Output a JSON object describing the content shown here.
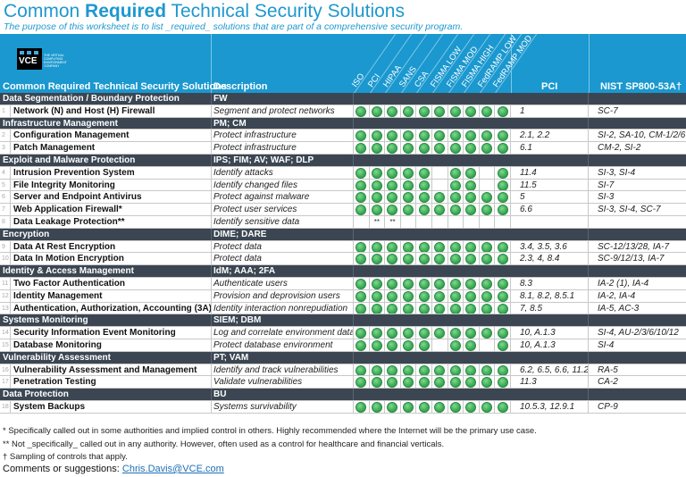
{
  "title": {
    "pre": "Common ",
    "bold": "Required",
    "post": " Technical Security Solutions"
  },
  "subtitle": "The purpose of this worksheet is to list _required_ solutions that are part of a comprehensive security program.",
  "logo": {
    "text": "VCE",
    "tagline": "THE VIRTUAL COMPUTING ENVIRONMENT COMPANY"
  },
  "header": {
    "solutions": "Common Required Technical Security Solutions",
    "description": "Description",
    "authorities": [
      "ISO",
      "PCI",
      "HIPAA",
      "SANS",
      "CSA",
      "FISMA LOW",
      "FISMA MOD",
      "FISMA HIGH",
      "FedRAMP LOW",
      "FedRAMP MOD"
    ],
    "pci": "PCI",
    "nist": "NIST SP800-53A†"
  },
  "colors": {
    "header": "#1a98cf",
    "section": "#3b4652",
    "dot": "#3aab55",
    "title": "#1e98cf"
  },
  "sections": [
    {
      "name": "Data Segmentation / Boundary Protection",
      "abbr": "FW",
      "items": [
        {
          "num": "1",
          "name": "Network (N) and Host (H) Firewall",
          "desc": "Segment and protect networks",
          "marks": [
            1,
            1,
            1,
            1,
            1,
            1,
            1,
            1,
            1,
            1
          ],
          "pci": "1",
          "nist": "SC-7"
        }
      ]
    },
    {
      "name": "Infrastructure Management",
      "abbr": "PM; CM",
      "items": [
        {
          "num": "2",
          "name": "Configuration Management",
          "desc": "Protect infrastructure",
          "marks": [
            1,
            1,
            1,
            1,
            1,
            1,
            1,
            1,
            1,
            1
          ],
          "pci": "2.1, 2.2",
          "nist": "SI-2, SA-10, CM-1/2/6"
        },
        {
          "num": "3",
          "name": "Patch Management",
          "desc": "Protect infrastructure",
          "marks": [
            1,
            1,
            1,
            1,
            1,
            1,
            1,
            1,
            1,
            1
          ],
          "pci": "6.1",
          "nist": "CM-2, SI-2"
        }
      ]
    },
    {
      "name": "Exploit and Malware Protection",
      "abbr": "IPS; FIM; AV; WAF; DLP",
      "items": [
        {
          "num": "4",
          "name": "Intrusion Prevention System",
          "desc": "Identify attacks",
          "marks": [
            1,
            1,
            1,
            1,
            1,
            0,
            1,
            1,
            0,
            1
          ],
          "pci": "11.4",
          "nist": "SI-3, SI-4"
        },
        {
          "num": "5",
          "name": "File Integrity Monitoring",
          "desc": "Identify changed files",
          "marks": [
            1,
            1,
            1,
            1,
            1,
            0,
            1,
            1,
            0,
            1
          ],
          "pci": "11.5",
          "nist": "SI-7"
        },
        {
          "num": "6",
          "name": "Server and Endpoint Antivirus",
          "desc": "Protect against malware",
          "marks": [
            1,
            1,
            1,
            1,
            1,
            1,
            1,
            1,
            1,
            1
          ],
          "pci": "5",
          "nist": "SI-3"
        },
        {
          "num": "7",
          "name": "Web Application Firewall*",
          "desc": "Protect user services",
          "marks": [
            1,
            1,
            1,
            1,
            1,
            1,
            1,
            1,
            1,
            1
          ],
          "pci": "6.6",
          "nist": "SI-3, SI-4, SC-7"
        },
        {
          "num": "8",
          "name": "Data Leakage Protection**",
          "desc": "Identify sensitive data",
          "marks": [
            0,
            "**",
            "**",
            0,
            0,
            0,
            0,
            0,
            0,
            0
          ],
          "pci": "",
          "nist": ""
        }
      ]
    },
    {
      "name": "Encryption",
      "abbr": "DIME; DARE",
      "items": [
        {
          "num": "9",
          "name": "Data At Rest Encryption",
          "desc": "Protect data",
          "marks": [
            1,
            1,
            1,
            1,
            1,
            1,
            1,
            1,
            1,
            1
          ],
          "pci": "3.4, 3.5, 3.6",
          "nist": "SC-12/13/28, IA-7"
        },
        {
          "num": "10",
          "name": "Data In Motion Encryption",
          "desc": "Protect data",
          "marks": [
            1,
            1,
            1,
            1,
            1,
            1,
            1,
            1,
            1,
            1
          ],
          "pci": "2.3, 4, 8.4",
          "nist": "SC-9/12/13, IA-7"
        }
      ]
    },
    {
      "name": "Identity & Access Management",
      "abbr": "IdM; AAA; 2FA",
      "items": [
        {
          "num": "11",
          "name": "Two Factor Authentication",
          "desc": "Authenticate users",
          "marks": [
            1,
            1,
            1,
            1,
            1,
            1,
            1,
            1,
            1,
            1
          ],
          "pci": "8.3",
          "nist": "IA-2 (1), IA-4"
        },
        {
          "num": "12",
          "name": "Identity Management",
          "desc": "Provision and deprovision users",
          "marks": [
            1,
            1,
            1,
            1,
            1,
            1,
            1,
            1,
            1,
            1
          ],
          "pci": "8.1, 8.2, 8.5.1",
          "nist": "IA-2, IA-4"
        },
        {
          "num": "13",
          "name": "Authentication, Authorization, Accounting (3A)",
          "desc": "Identity interaction nonrepudiation",
          "marks": [
            1,
            1,
            1,
            1,
            1,
            1,
            1,
            1,
            1,
            1
          ],
          "pci": "7, 8.5",
          "nist": "IA-5, AC-3"
        }
      ]
    },
    {
      "name": "Systems Monitoring",
      "abbr": "SIEM; DBM",
      "items": [
        {
          "num": "14",
          "name": "Security Information Event Monitoring",
          "desc": "Log and correlate environment data",
          "marks": [
            1,
            1,
            1,
            1,
            1,
            1,
            1,
            1,
            1,
            1
          ],
          "pci": "10, A.1.3",
          "nist": "SI-4, AU-2/3/6/10/12"
        },
        {
          "num": "15",
          "name": "Database Monitoring",
          "desc": "Protect database environment",
          "marks": [
            1,
            1,
            1,
            1,
            1,
            0,
            1,
            1,
            0,
            1
          ],
          "pci": "10, A.1.3",
          "nist": "SI-4"
        }
      ]
    },
    {
      "name": "Vulnerability Assessment",
      "abbr": "PT; VAM",
      "items": [
        {
          "num": "16",
          "name": "Vulnerability Assessment and Management",
          "desc": "Identify and track vulnerabilities",
          "marks": [
            1,
            1,
            1,
            1,
            1,
            1,
            1,
            1,
            1,
            1
          ],
          "pci": "6.2, 6.5, 6.6, 11.2",
          "nist": "RA-5"
        },
        {
          "num": "17",
          "name": "Penetration Testing",
          "desc": "Validate vulnerabilities",
          "marks": [
            1,
            1,
            1,
            1,
            1,
            1,
            1,
            1,
            1,
            1
          ],
          "pci": "11.3",
          "nist": "CA-2"
        }
      ]
    },
    {
      "name": "Data Protection",
      "abbr": "BU",
      "items": [
        {
          "num": "18",
          "name": "System Backups",
          "desc": "Systems survivability",
          "marks": [
            1,
            1,
            1,
            1,
            1,
            1,
            1,
            1,
            1,
            1
          ],
          "pci": "10.5.3, 12.9.1",
          "nist": "CP-9"
        }
      ]
    }
  ],
  "footnotes": [
    "* Specifically called out in some authorities and implied control in others. Highly recommended where the Internet will be the primary use case.",
    "** Not _specifically_ called out in any authority. However, often used as a control for healthcare and financial verticals.",
    "† Sampling of controls that apply."
  ],
  "comments": {
    "label": "Comments or suggestions: ",
    "email": "Chris.Davis@VCE.com"
  }
}
